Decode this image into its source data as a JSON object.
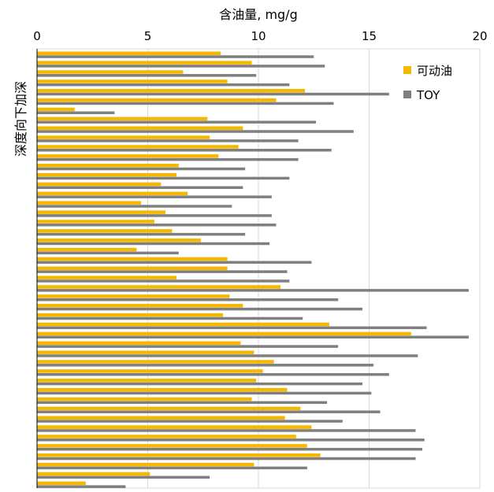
{
  "chart_data": {
    "type": "bar",
    "orientation": "horizontal",
    "title": "含油量, mg/g",
    "xlabel": "含油量, mg/g",
    "ylabel": "深度向下加深",
    "xlim": [
      0,
      20
    ],
    "xticks": [
      0,
      5,
      10,
      15,
      20
    ],
    "grid": true,
    "legend_position": "top-right",
    "series": [
      {
        "name": "可动油",
        "color": "#F5B800",
        "values": [
          8.3,
          9.7,
          6.6,
          8.6,
          12.1,
          10.8,
          1.7,
          7.7,
          9.3,
          7.8,
          9.1,
          8.2,
          6.4,
          6.3,
          5.6,
          6.8,
          4.7,
          5.8,
          5.3,
          6.1,
          7.4,
          4.5,
          8.6,
          8.6,
          6.3,
          11.0,
          8.7,
          9.3,
          8.4,
          13.2,
          16.9,
          9.2,
          9.8,
          10.7,
          10.2,
          9.9,
          11.3,
          9.7,
          11.9,
          11.2,
          12.4,
          11.7,
          12.2,
          12.8,
          9.8,
          5.1,
          2.2
        ],
        "bar_height_units": 4
      },
      {
        "name": "TOY",
        "color": "#7F7F7F",
        "values": [
          12.5,
          13.0,
          9.9,
          11.4,
          15.9,
          13.4,
          3.5,
          12.6,
          14.3,
          11.8,
          13.3,
          11.8,
          9.4,
          11.4,
          9.3,
          10.6,
          8.8,
          10.6,
          10.8,
          9.4,
          10.5,
          6.4,
          12.4,
          11.3,
          11.4,
          19.5,
          13.6,
          14.7,
          12.0,
          17.6,
          19.5,
          13.6,
          17.2,
          15.2,
          15.9,
          14.7,
          15.1,
          13.1,
          15.5,
          13.8,
          17.1,
          17.5,
          17.4,
          17.1,
          12.2,
          7.8,
          4.0
        ],
        "bar_height_units": 3
      }
    ]
  }
}
